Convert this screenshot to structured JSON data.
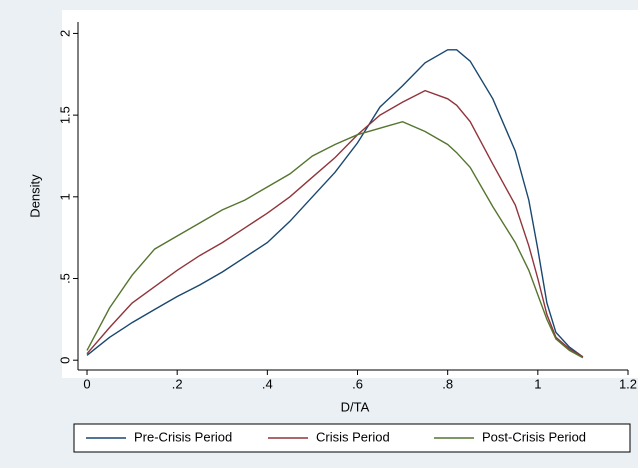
{
  "chart_data": {
    "type": "line",
    "x_label": "D/TA",
    "y_label": "Density",
    "x": [
      0,
      0.05,
      0.1,
      0.15,
      0.2,
      0.25,
      0.3,
      0.35,
      0.4,
      0.45,
      0.5,
      0.55,
      0.6,
      0.65,
      0.7,
      0.75,
      0.8,
      0.82,
      0.85,
      0.9,
      0.95,
      0.98,
      1.0,
      1.02,
      1.04,
      1.07,
      1.1
    ],
    "series": [
      {
        "name": "Pre-Crisis Period",
        "color": "#1a476f",
        "values": [
          0.03,
          0.14,
          0.23,
          0.31,
          0.39,
          0.46,
          0.54,
          0.63,
          0.72,
          0.85,
          1.0,
          1.15,
          1.33,
          1.55,
          1.68,
          1.82,
          1.9,
          1.9,
          1.83,
          1.6,
          1.28,
          0.98,
          0.68,
          0.35,
          0.17,
          0.08,
          0.02
        ]
      },
      {
        "name": "Crisis Period",
        "color": "#90353b",
        "values": [
          0.04,
          0.2,
          0.35,
          0.45,
          0.55,
          0.64,
          0.72,
          0.81,
          0.9,
          1.0,
          1.12,
          1.24,
          1.38,
          1.5,
          1.58,
          1.65,
          1.6,
          1.56,
          1.46,
          1.2,
          0.95,
          0.7,
          0.5,
          0.28,
          0.14,
          0.07,
          0.02
        ]
      },
      {
        "name": "Post-Crisis Period",
        "color": "#55752f",
        "values": [
          0.06,
          0.32,
          0.52,
          0.68,
          0.76,
          0.84,
          0.92,
          0.98,
          1.06,
          1.14,
          1.25,
          1.32,
          1.38,
          1.42,
          1.46,
          1.4,
          1.32,
          1.27,
          1.18,
          0.94,
          0.72,
          0.55,
          0.4,
          0.25,
          0.13,
          0.06,
          0.015
        ]
      }
    ],
    "xlim": [
      -0.02,
      1.2
    ],
    "xticks": [
      0,
      {
        "value": 0.2,
        "label": ".2"
      },
      {
        "value": 0.4,
        "label": ".4"
      },
      {
        "value": 0.6,
        "label": ".6"
      },
      {
        "value": 0.8,
        "label": ".8"
      },
      1,
      1.2
    ],
    "ylim": [
      -0.06,
      2.07
    ],
    "yticks": [
      0,
      {
        "value": 0.5,
        "label": ".5"
      },
      1,
      1.5,
      2
    ],
    "legend": "bottom"
  }
}
